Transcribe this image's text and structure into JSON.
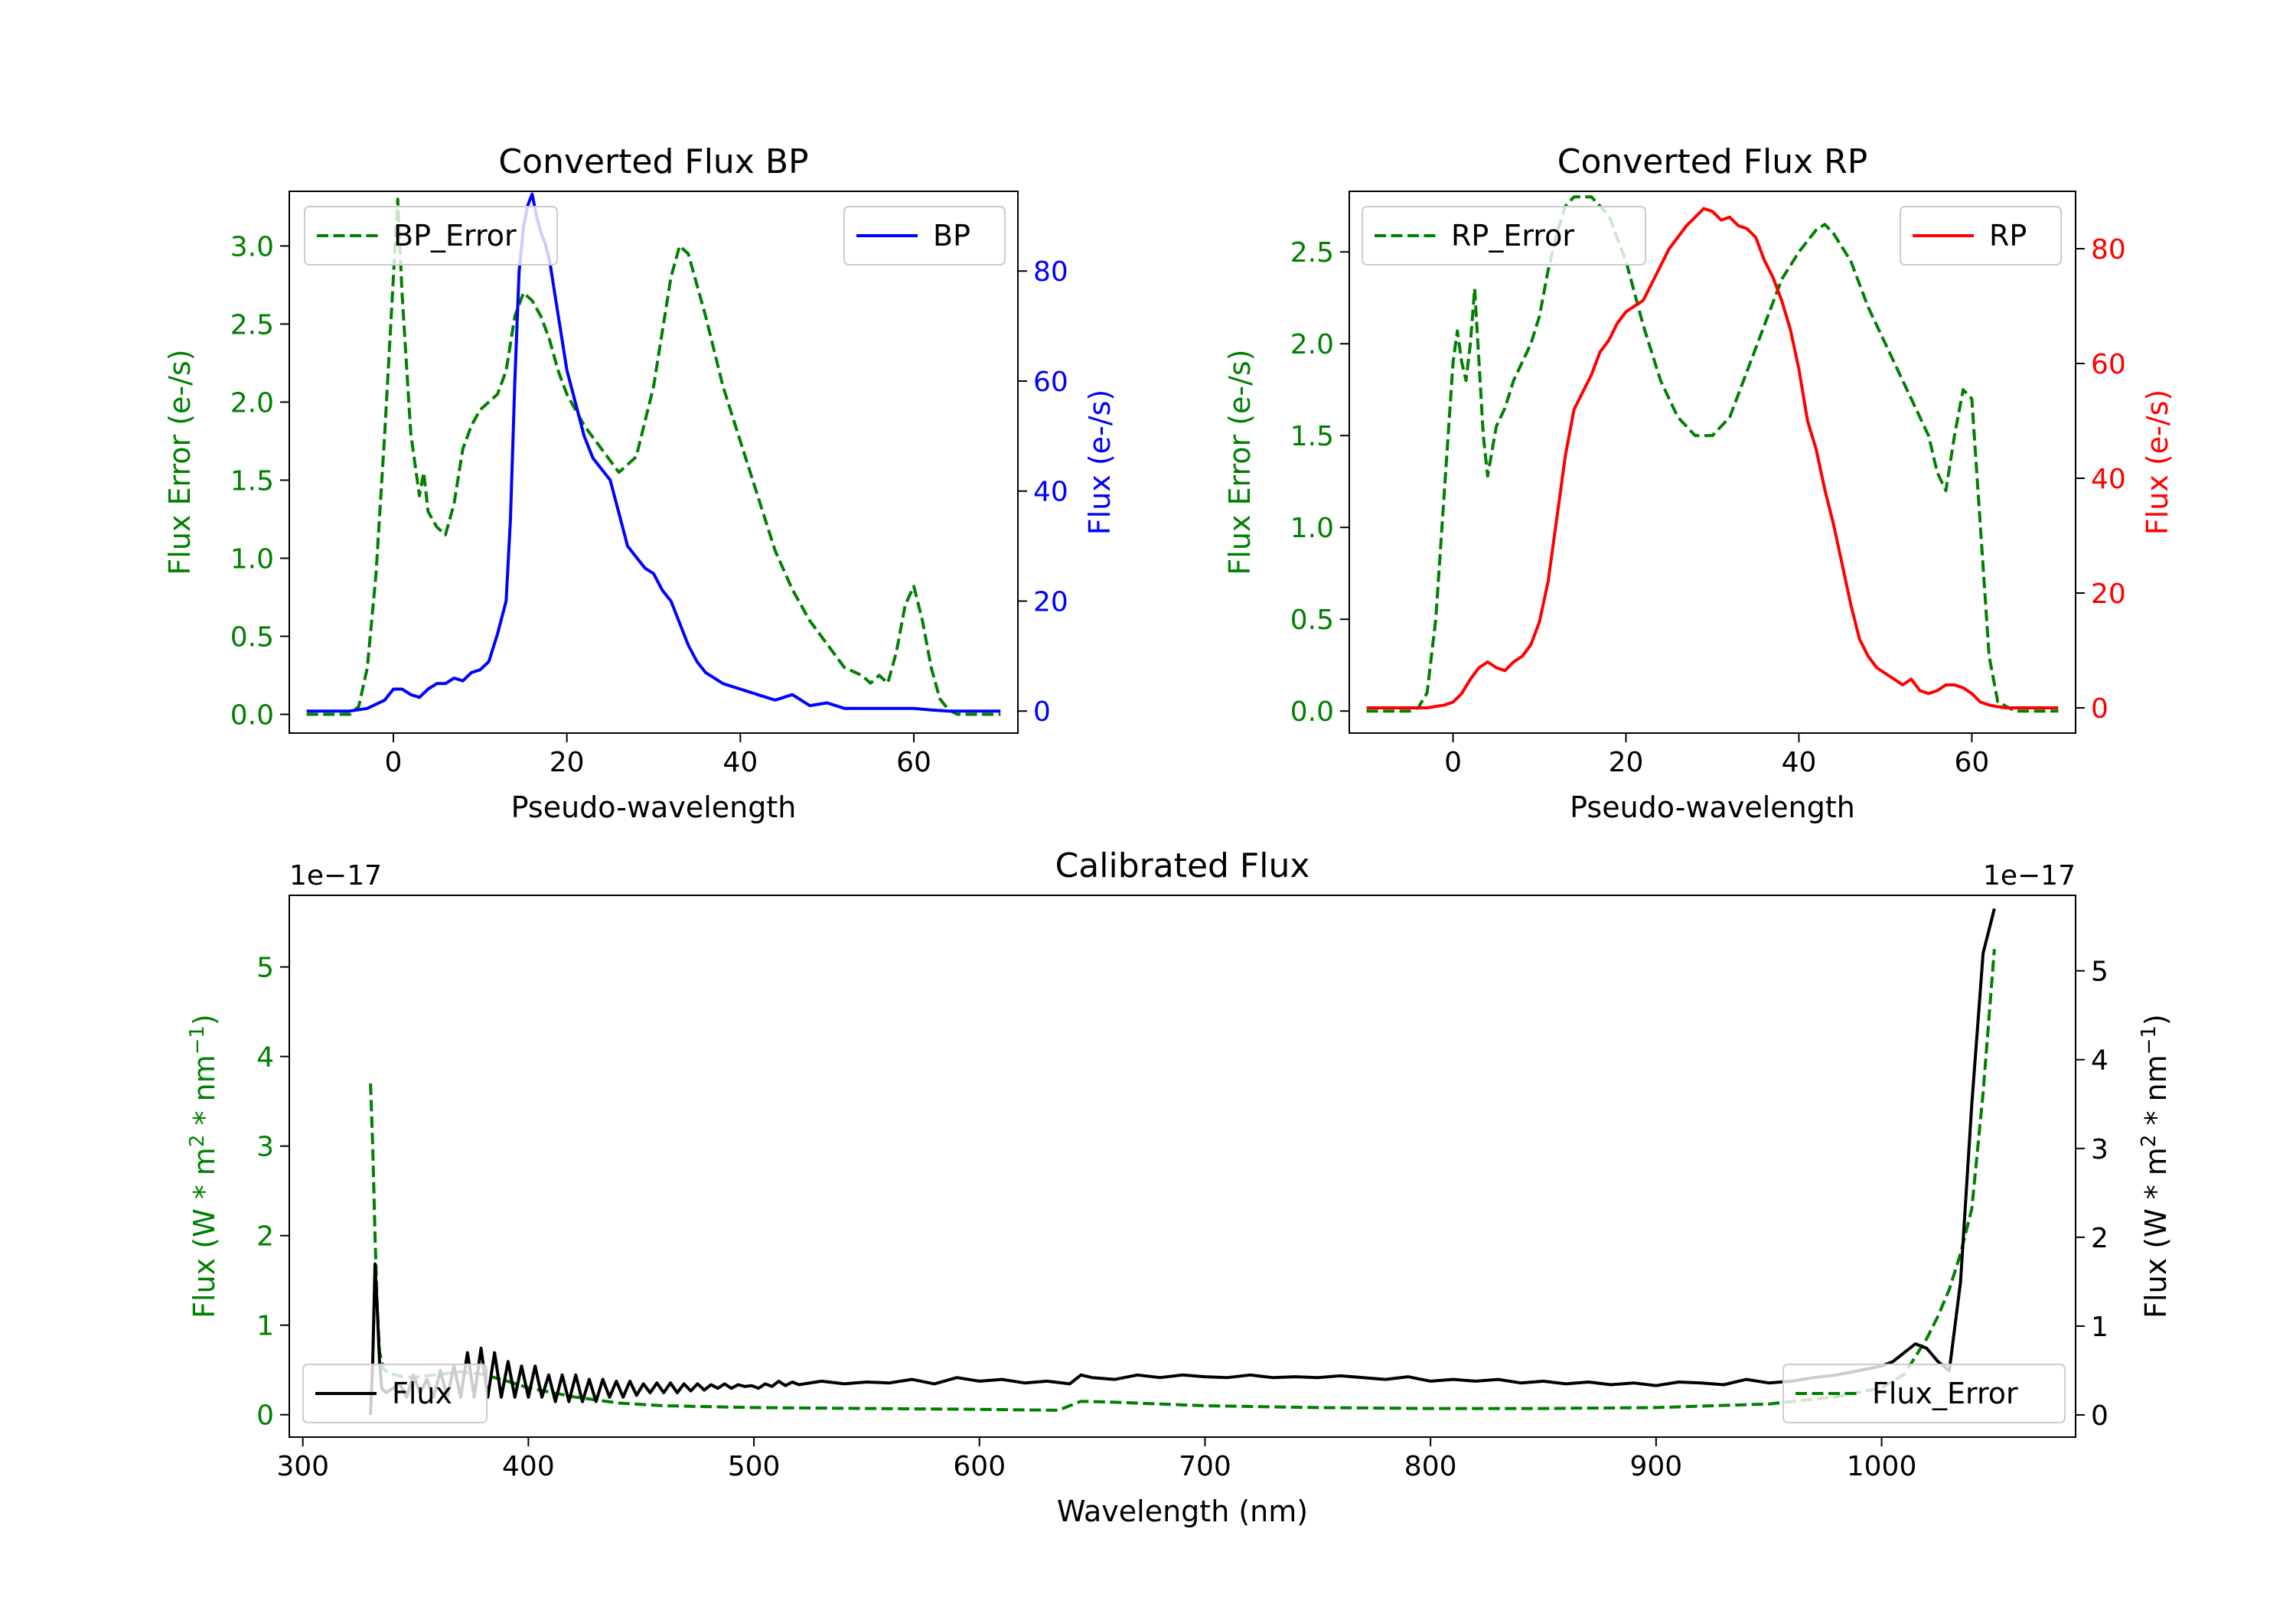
{
  "colors": {
    "bp": "#0000ff",
    "rp": "#ff0000",
    "error": "#008000",
    "flux": "#000000",
    "axis": "#000000"
  },
  "chart_data": [
    {
      "id": "bp",
      "type": "line",
      "title": "Converted Flux BP",
      "xlabel": "Pseudo-wavelength",
      "ylabel_left": "Flux Error (e-/s)",
      "ylabel_right": "Flux (e-/s)",
      "xlim": [
        -12,
        72
      ],
      "ylim_left": [
        -0.12,
        3.35
      ],
      "ylim_right": [
        -4,
        94.5
      ],
      "x_ticks": [
        0,
        20,
        40,
        60
      ],
      "x_tick_labels": [
        "0",
        "20",
        "40",
        "60"
      ],
      "y_left_ticks": [
        0.0,
        0.5,
        1.0,
        1.5,
        2.0,
        2.5,
        3.0
      ],
      "y_left_tick_labels": [
        "0.0",
        "0.5",
        "1.0",
        "1.5",
        "2.0",
        "2.5",
        "3.0"
      ],
      "y_right_ticks": [
        0,
        20,
        40,
        60,
        80
      ],
      "y_right_tick_labels": [
        "0",
        "20",
        "40",
        "60",
        "80"
      ],
      "legend_left": {
        "label": "BP_Error",
        "placement": "upper-left"
      },
      "legend_right": {
        "label": "BP",
        "placement": "upper-right"
      },
      "series": [
        {
          "name": "BP_Error",
          "axis": "left",
          "style": "dashed",
          "color": "#008000",
          "x": [
            -10,
            -5,
            -4,
            -3,
            -2,
            -1,
            0,
            0.5,
            1,
            2,
            3,
            3.5,
            4,
            5,
            6,
            7,
            8,
            9,
            10,
            11,
            12,
            13,
            14,
            15,
            16,
            17,
            18,
            19,
            20,
            22,
            24,
            26,
            28,
            30,
            32,
            33,
            34,
            36,
            38,
            40,
            42,
            44,
            46,
            48,
            50,
            52,
            54,
            55,
            56,
            57,
            58,
            59,
            60,
            61,
            62,
            63,
            64,
            65,
            70
          ],
          "y": [
            0,
            0,
            0.05,
            0.3,
            0.9,
            1.8,
            2.8,
            3.3,
            2.7,
            1.8,
            1.4,
            1.55,
            1.3,
            1.2,
            1.15,
            1.35,
            1.7,
            1.85,
            1.95,
            2.0,
            2.05,
            2.2,
            2.55,
            2.7,
            2.65,
            2.55,
            2.4,
            2.2,
            2.05,
            1.85,
            1.7,
            1.55,
            1.65,
            2.1,
            2.8,
            3.0,
            2.95,
            2.55,
            2.1,
            1.75,
            1.4,
            1.05,
            0.8,
            0.6,
            0.45,
            0.3,
            0.25,
            0.2,
            0.25,
            0.2,
            0.4,
            0.7,
            0.82,
            0.6,
            0.3,
            0.1,
            0.03,
            0,
            0
          ]
        },
        {
          "name": "BP",
          "axis": "right",
          "style": "solid",
          "color": "#0000ff",
          "x": [
            -10,
            -5,
            -3,
            -1,
            0,
            1,
            2,
            3,
            4,
            5,
            6,
            7,
            8,
            9,
            10,
            11,
            12,
            13,
            13.5,
            14,
            14.5,
            15,
            15.5,
            16,
            16.5,
            17,
            17.5,
            18,
            19,
            20,
            21,
            22,
            23,
            24,
            25,
            26,
            27,
            28,
            29,
            30,
            31,
            32,
            33,
            34,
            35,
            36,
            37,
            38,
            40,
            42,
            44,
            46,
            48,
            50,
            52,
            56,
            60,
            62,
            64,
            66,
            70
          ],
          "y": [
            0,
            0,
            0.5,
            2,
            4,
            4,
            3,
            2.5,
            4,
            5,
            5,
            6,
            5.5,
            7,
            7.5,
            9,
            14,
            20,
            35,
            60,
            80,
            88,
            92,
            94,
            90,
            87,
            85,
            82,
            72,
            62,
            56,
            50,
            46,
            44,
            42,
            36,
            30,
            28,
            26,
            25,
            22,
            20,
            16,
            12,
            9,
            7,
            6,
            5,
            4,
            3,
            2,
            3,
            1,
            1.5,
            0.5,
            0.5,
            0.5,
            0.2,
            0,
            0,
            0
          ]
        }
      ]
    },
    {
      "id": "rp",
      "type": "line",
      "title": "Converted Flux RP",
      "xlabel": "Pseudo-wavelength",
      "ylabel_left": "Flux Error (e-/s)",
      "ylabel_right": "Flux (e-/s)",
      "xlim": [
        -12,
        72
      ],
      "ylim_left": [
        -0.12,
        2.83
      ],
      "ylim_right": [
        -4.4,
        90
      ],
      "x_ticks": [
        0,
        20,
        40,
        60
      ],
      "x_tick_labels": [
        "0",
        "20",
        "40",
        "60"
      ],
      "y_left_ticks": [
        0.0,
        0.5,
        1.0,
        1.5,
        2.0,
        2.5
      ],
      "y_left_tick_labels": [
        "0.0",
        "0.5",
        "1.0",
        "1.5",
        "2.0",
        "2.5"
      ],
      "y_right_ticks": [
        0,
        20,
        40,
        60,
        80
      ],
      "y_right_tick_labels": [
        "0",
        "20",
        "40",
        "60",
        "80"
      ],
      "legend_left": {
        "label": "RP_Error",
        "placement": "upper-left"
      },
      "legend_right": {
        "label": "RP",
        "placement": "upper-right"
      },
      "series": [
        {
          "name": "RP_Error",
          "axis": "left",
          "style": "dashed",
          "color": "#008000",
          "x": [
            -10,
            -5,
            -4,
            -3,
            -2,
            -1,
            0,
            0.5,
            1,
            1.5,
            2,
            2.5,
            3,
            3.5,
            4,
            5,
            6,
            7,
            8,
            9,
            10,
            11,
            12,
            13,
            14,
            15,
            16,
            17,
            18,
            20,
            22,
            24,
            26,
            28,
            30,
            32,
            34,
            36,
            38,
            40,
            42,
            43,
            44,
            46,
            48,
            50,
            52,
            54,
            55,
            56,
            57,
            58,
            59,
            60,
            61,
            62,
            63,
            65,
            70
          ],
          "y": [
            0,
            0,
            0.02,
            0.1,
            0.5,
            1.2,
            1.9,
            2.07,
            1.9,
            1.8,
            2.0,
            2.3,
            1.9,
            1.5,
            1.28,
            1.55,
            1.65,
            1.8,
            1.9,
            2.0,
            2.15,
            2.4,
            2.6,
            2.75,
            2.8,
            2.8,
            2.8,
            2.75,
            2.7,
            2.45,
            2.1,
            1.8,
            1.6,
            1.5,
            1.5,
            1.6,
            1.85,
            2.1,
            2.35,
            2.5,
            2.62,
            2.65,
            2.6,
            2.45,
            2.2,
            2.0,
            1.8,
            1.6,
            1.5,
            1.3,
            1.2,
            1.5,
            1.75,
            1.7,
            1.0,
            0.3,
            0.05,
            0,
            0
          ]
        },
        {
          "name": "RP",
          "axis": "right",
          "style": "solid",
          "color": "#ff0000",
          "x": [
            -10,
            -5,
            -3,
            -1,
            0,
            1,
            2,
            3,
            4,
            5,
            6,
            7,
            8,
            9,
            10,
            11,
            12,
            13,
            14,
            15,
            16,
            17,
            18,
            19,
            20,
            21,
            22,
            23,
            24,
            25,
            26,
            27,
            28,
            29,
            30,
            31,
            32,
            33,
            34,
            35,
            36,
            37,
            38,
            39,
            40,
            41,
            42,
            43,
            44,
            45,
            46,
            47,
            48,
            49,
            50,
            51,
            52,
            53,
            54,
            55,
            56,
            57,
            58,
            59,
            60,
            61,
            62,
            63,
            64,
            65,
            70
          ],
          "y": [
            0,
            0,
            0,
            0.5,
            1,
            2.5,
            5,
            7,
            8,
            7,
            6.5,
            8,
            9,
            11,
            15,
            22,
            33,
            44,
            52,
            55,
            58,
            62,
            64,
            67,
            69,
            70,
            71,
            74,
            77,
            80,
            82,
            84,
            85.5,
            87,
            86.5,
            85,
            85.5,
            84,
            83.5,
            82,
            78,
            75,
            71,
            66,
            59,
            50,
            45,
            38,
            32,
            25,
            18,
            12,
            9,
            7,
            6,
            5,
            4,
            5,
            3,
            2.5,
            3,
            4,
            4,
            3.5,
            2.5,
            1,
            0.5,
            0.2,
            0,
            0,
            0
          ]
        }
      ]
    },
    {
      "id": "calibrated",
      "type": "line",
      "title": "Calibrated Flux",
      "xlabel": "Wavelength (nm)",
      "ylabel_left": "Flux (W * m",
      "ylabel_right": "Flux (W * m",
      "ylabel_sup1": "2",
      "ylabel_mid": " * nm",
      "ylabel_sup2": "−1",
      "ylabel_end": ")",
      "offset_left": "1e−17",
      "offset_right": "1e−17",
      "scale": 1e-17,
      "xlim": [
        294,
        1086
      ],
      "ylim_left": [
        -0.25,
        5.8
      ],
      "ylim_right": [
        -0.25,
        5.85
      ],
      "x_ticks": [
        300,
        400,
        500,
        600,
        700,
        800,
        900,
        1000
      ],
      "x_tick_labels": [
        "300",
        "400",
        "500",
        "600",
        "700",
        "800",
        "900",
        "1000"
      ],
      "y_left_ticks": [
        0,
        1,
        2,
        3,
        4,
        5
      ],
      "y_left_tick_labels": [
        "0",
        "1",
        "2",
        "3",
        "4",
        "5"
      ],
      "y_right_ticks": [
        0,
        1,
        2,
        3,
        4,
        5
      ],
      "y_right_tick_labels": [
        "0",
        "1",
        "2",
        "3",
        "4",
        "5"
      ],
      "legend_left": {
        "label": "Flux",
        "placement": "lower-left"
      },
      "legend_right": {
        "label": "Flux_Error",
        "placement": "lower-right"
      },
      "series": [
        {
          "name": "Flux_Error",
          "axis": "left",
          "style": "dashed",
          "color": "#008000",
          "x": [
            330,
            331,
            332,
            333,
            334,
            336,
            340,
            345,
            350,
            360,
            370,
            380,
            390,
            400,
            420,
            440,
            460,
            500,
            550,
            600,
            635,
            640,
            645,
            660,
            700,
            750,
            800,
            850,
            900,
            950,
            980,
            1000,
            1010,
            1015,
            1020,
            1025,
            1030,
            1035,
            1040,
            1045,
            1050
          ],
          "y": [
            3.7,
            3.0,
            2.0,
            1.2,
            0.7,
            0.5,
            0.45,
            0.42,
            0.42,
            0.45,
            0.48,
            0.45,
            0.38,
            0.3,
            0.2,
            0.13,
            0.1,
            0.08,
            0.07,
            0.06,
            0.05,
            0.1,
            0.15,
            0.14,
            0.1,
            0.08,
            0.07,
            0.07,
            0.08,
            0.12,
            0.2,
            0.3,
            0.45,
            0.65,
            0.85,
            1.1,
            1.4,
            1.8,
            2.3,
            3.6,
            5.2
          ]
        },
        {
          "name": "Flux",
          "axis": "right",
          "style": "solid",
          "color": "#000000",
          "x": [
            330,
            331,
            332,
            333,
            334,
            335,
            337,
            340,
            343,
            346,
            349,
            352,
            355,
            358,
            361,
            364,
            367,
            370,
            373,
            376,
            379,
            382,
            385,
            388,
            391,
            394,
            397,
            400,
            403,
            406,
            409,
            412,
            415,
            418,
            421,
            424,
            427,
            430,
            433,
            436,
            439,
            442,
            445,
            448,
            451,
            454,
            457,
            460,
            463,
            466,
            469,
            472,
            475,
            478,
            481,
            484,
            487,
            490,
            493,
            496,
            499,
            502,
            505,
            508,
            511,
            514,
            517,
            520,
            530,
            540,
            550,
            560,
            570,
            580,
            590,
            600,
            610,
            620,
            630,
            640,
            645,
            650,
            660,
            670,
            680,
            690,
            700,
            710,
            720,
            730,
            740,
            750,
            760,
            770,
            780,
            790,
            800,
            810,
            820,
            830,
            840,
            850,
            860,
            870,
            880,
            890,
            900,
            910,
            920,
            930,
            940,
            950,
            960,
            970,
            980,
            990,
            1000,
            1005,
            1010,
            1015,
            1020,
            1025,
            1030,
            1035,
            1040,
            1045,
            1050
          ],
          "y": [
            0.0,
            0.6,
            1.7,
            1.2,
            0.6,
            0.3,
            0.25,
            0.3,
            0.35,
            0.2,
            0.45,
            0.25,
            0.4,
            0.2,
            0.5,
            0.2,
            0.55,
            0.2,
            0.7,
            0.2,
            0.75,
            0.2,
            0.7,
            0.2,
            0.6,
            0.2,
            0.55,
            0.2,
            0.55,
            0.2,
            0.45,
            0.15,
            0.45,
            0.15,
            0.45,
            0.15,
            0.4,
            0.15,
            0.4,
            0.2,
            0.38,
            0.2,
            0.38,
            0.22,
            0.35,
            0.25,
            0.36,
            0.25,
            0.36,
            0.25,
            0.35,
            0.27,
            0.35,
            0.28,
            0.34,
            0.3,
            0.35,
            0.3,
            0.34,
            0.32,
            0.33,
            0.3,
            0.35,
            0.32,
            0.38,
            0.33,
            0.37,
            0.34,
            0.38,
            0.35,
            0.37,
            0.36,
            0.4,
            0.35,
            0.42,
            0.38,
            0.4,
            0.36,
            0.38,
            0.35,
            0.45,
            0.42,
            0.4,
            0.45,
            0.42,
            0.45,
            0.43,
            0.42,
            0.45,
            0.42,
            0.43,
            0.42,
            0.44,
            0.42,
            0.4,
            0.43,
            0.38,
            0.4,
            0.38,
            0.4,
            0.36,
            0.38,
            0.35,
            0.37,
            0.34,
            0.36,
            0.33,
            0.37,
            0.36,
            0.34,
            0.4,
            0.36,
            0.38,
            0.42,
            0.45,
            0.5,
            0.55,
            0.6,
            0.7,
            0.8,
            0.75,
            0.6,
            0.5,
            1.5,
            3.5,
            5.2,
            5.7
          ]
        }
      ]
    }
  ]
}
